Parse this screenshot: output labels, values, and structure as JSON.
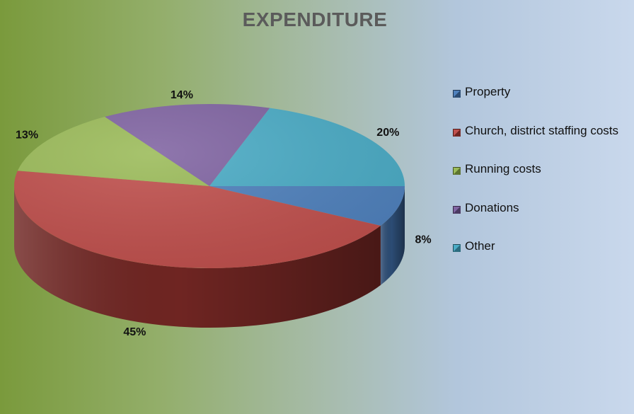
{
  "chart_data": {
    "type": "pie",
    "title": "EXPENDITURE",
    "categories": [
      "Property",
      "Church, district staffing costs",
      "Running costs",
      "Donations",
      "Other"
    ],
    "values": [
      8,
      45,
      13,
      14,
      20
    ],
    "labels": [
      "8%",
      "45%",
      "13%",
      "14%",
      "20%"
    ],
    "colors": [
      "#4f81bd",
      "#c0504d",
      "#9bbb59",
      "#8064a2",
      "#4bacc6"
    ],
    "side_colors": [
      "#2c4c74",
      "#6f2522",
      "#5d7530",
      "#4a3a63",
      "#2b6c80"
    ],
    "legend_position": "right",
    "three_d": true
  }
}
